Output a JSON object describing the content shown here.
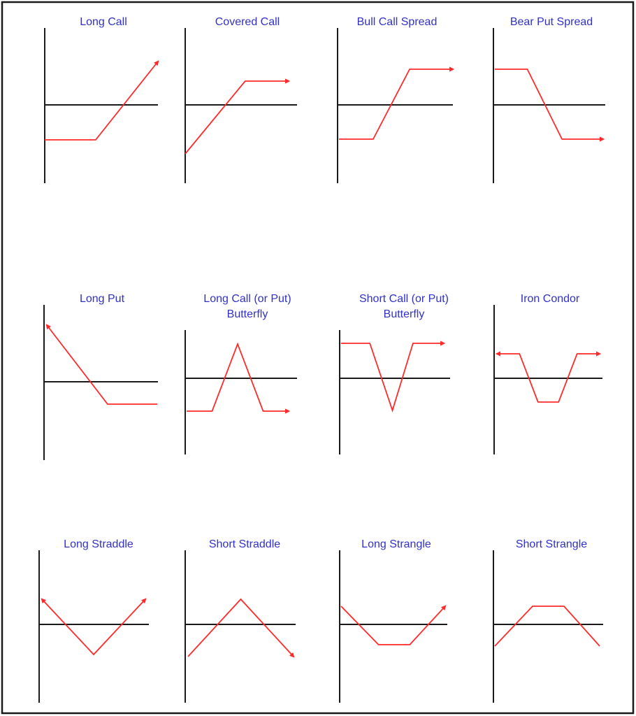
{
  "colors": {
    "title": "#3131c8",
    "payoff": "#ff2a2a",
    "axis": "#1a1a1a"
  },
  "diagrams": [
    {
      "id": "long-call",
      "title": [
        "Long Call"
      ],
      "line": [
        [
          0.0,
          0.0
        ],
        [
          0.45,
          0.0
        ],
        [
          1.0,
          1.0
        ]
      ],
      "zero": 0.45,
      "arrow_start": false,
      "arrow_end": true
    },
    {
      "id": "covered-call",
      "title": [
        "Covered Call"
      ],
      "line": [
        [
          0.0,
          0.0
        ],
        [
          0.58,
          1.0
        ],
        [
          1.0,
          1.0
        ]
      ],
      "zero": 0.6,
      "arrow_start": false,
      "arrow_end": true
    },
    {
      "id": "bull-call-spread",
      "title": [
        "Bull Call Spread"
      ],
      "line": [
        [
          0.0,
          0.0
        ],
        [
          0.3,
          0.0
        ],
        [
          0.62,
          1.0
        ],
        [
          1.0,
          1.0
        ]
      ],
      "zero": 0.5,
      "arrow_start": false,
      "arrow_end": true
    },
    {
      "id": "bear-put-spread",
      "title": [
        "Bear Put Spread"
      ],
      "line": [
        [
          0.0,
          1.0
        ],
        [
          0.3,
          1.0
        ],
        [
          0.62,
          0.0
        ],
        [
          1.0,
          0.0
        ]
      ],
      "zero": 0.5,
      "arrow_start": false,
      "arrow_end": true
    },
    {
      "id": "long-put",
      "title": [
        "Long Put"
      ],
      "line": [
        [
          0.0,
          1.0
        ],
        [
          0.55,
          0.0
        ],
        [
          1.0,
          0.0
        ]
      ],
      "zero": 0.28,
      "arrow_start": true,
      "arrow_end": false
    },
    {
      "id": "long-call-butterfly",
      "title": [
        "Long Call (or Put)",
        "Butterfly"
      ],
      "line": [
        [
          0.0,
          0.0
        ],
        [
          0.25,
          0.0
        ],
        [
          0.5,
          1.0
        ],
        [
          0.75,
          0.0
        ],
        [
          1.0,
          0.0
        ]
      ],
      "zero": 0.5,
      "arrow_start": false,
      "arrow_end": true
    },
    {
      "id": "short-call-butterfly",
      "title": [
        "Short Call (or Put)",
        "Butterfly"
      ],
      "line": [
        [
          0.0,
          1.0
        ],
        [
          0.28,
          1.0
        ],
        [
          0.5,
          0.0
        ],
        [
          0.7,
          1.0
        ],
        [
          1.0,
          1.0
        ]
      ],
      "zero": 0.5,
      "arrow_start": false,
      "arrow_end": true
    },
    {
      "id": "iron-condor",
      "title": [
        "Iron Condor"
      ],
      "line": [
        [
          0.0,
          1.0
        ],
        [
          0.22,
          1.0
        ],
        [
          0.4,
          0.0
        ],
        [
          0.6,
          0.0
        ],
        [
          0.78,
          1.0
        ],
        [
          1.0,
          1.0
        ]
      ],
      "zero": 0.5,
      "arrow_start": true,
      "arrow_end": true
    },
    {
      "id": "long-straddle",
      "title": [
        "Long Straddle"
      ],
      "line": [
        [
          0.0,
          1.0
        ],
        [
          0.5,
          0.0
        ],
        [
          1.0,
          1.0
        ]
      ],
      "zero": 0.5,
      "arrow_start": true,
      "arrow_end": true
    },
    {
      "id": "short-straddle",
      "title": [
        "Short Straddle"
      ],
      "line": [
        [
          0.0,
          0.0
        ],
        [
          0.5,
          1.0
        ],
        [
          1.0,
          0.0
        ]
      ],
      "zero": 0.5,
      "arrow_start": false,
      "arrow_end": true
    },
    {
      "id": "long-strangle",
      "title": [
        "Long Strangle"
      ],
      "line": [
        [
          0.0,
          1.0
        ],
        [
          0.36,
          0.0
        ],
        [
          0.66,
          0.0
        ],
        [
          1.0,
          1.0
        ]
      ],
      "zero": 0.5,
      "arrow_start": false,
      "arrow_end": true
    },
    {
      "id": "short-strangle",
      "title": [
        "Short Strangle"
      ],
      "line": [
        [
          0.0,
          0.0
        ],
        [
          0.36,
          1.0
        ],
        [
          0.66,
          1.0
        ],
        [
          1.0,
          0.0
        ]
      ],
      "zero": 0.5,
      "arrow_start": false,
      "arrow_end": false
    }
  ]
}
